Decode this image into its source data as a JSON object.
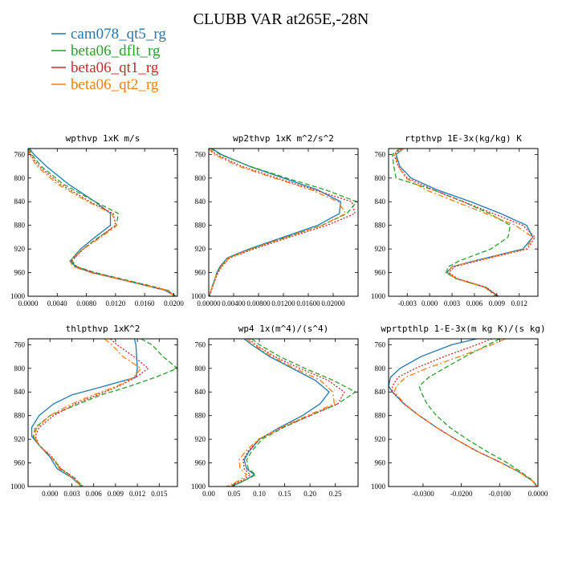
{
  "title": "CLUBB VAR at265E,-28N",
  "legend": [
    {
      "name": "cam078_qt5_rg",
      "color": "#1f77b4",
      "dash": "solid"
    },
    {
      "name": "beta06_dflt_rg",
      "color": "#2ca02c",
      "dash": "dashed"
    },
    {
      "name": "beta06_qt1_rg",
      "color": "#d62728",
      "dash": "dotted"
    },
    {
      "name": "beta06_qt2_rg",
      "color": "#ff7f0e",
      "dash": "dashdot"
    }
  ],
  "chart_data": [
    {
      "type": "line",
      "title": "wpthvp  1xK m/s",
      "ylim": [
        1000,
        750
      ],
      "yticks": [
        760,
        800,
        840,
        880,
        920,
        960,
        1000
      ],
      "ytick_labels": [
        "760",
        "800",
        "840",
        "880",
        "920",
        "960",
        "1000"
      ],
      "xlim": [
        0.0,
        0.0205
      ],
      "xticks": [
        0.0,
        0.004,
        0.008,
        0.012,
        0.016,
        0.02
      ],
      "xtick_labels": [
        "0.0000",
        "0.0040",
        "0.0080",
        "0.0120",
        "0.0160",
        "0.0200"
      ],
      "y": [
        750,
        760,
        780,
        810,
        840,
        860,
        880,
        900,
        920,
        940,
        950,
        960,
        970,
        980,
        990,
        1000
      ],
      "series": [
        {
          "name": "cam078_qt5_rg",
          "values": [
            0.0002,
            0.0008,
            0.0025,
            0.0055,
            0.0092,
            0.0113,
            0.0113,
            0.0092,
            0.0072,
            0.0058,
            0.0065,
            0.0088,
            0.0122,
            0.0155,
            0.0188,
            0.0202
          ]
        },
        {
          "name": "beta06_dflt_rg",
          "values": [
            0.0001,
            0.0005,
            0.0018,
            0.0048,
            0.0092,
            0.0124,
            0.0121,
            0.0097,
            0.0075,
            0.006,
            0.0067,
            0.0092,
            0.0126,
            0.016,
            0.0192,
            0.0203
          ]
        },
        {
          "name": "beta06_qt1_rg",
          "values": [
            0.0,
            0.0003,
            0.0015,
            0.0044,
            0.0085,
            0.0117,
            0.012,
            0.0098,
            0.0076,
            0.006,
            0.0066,
            0.009,
            0.0124,
            0.0158,
            0.0191,
            0.0202
          ]
        },
        {
          "name": "beta06_qt2_rg",
          "values": [
            0.0,
            0.0002,
            0.0012,
            0.004,
            0.0082,
            0.0115,
            0.0122,
            0.01,
            0.0076,
            0.0057,
            0.0062,
            0.0086,
            0.0121,
            0.0156,
            0.019,
            0.0201
          ]
        }
      ]
    },
    {
      "type": "line",
      "title": "wp2thvp  1xK m^2/s^2",
      "ylim": [
        1000,
        750
      ],
      "yticks": [
        760,
        800,
        840,
        880,
        920,
        960,
        1000
      ],
      "ytick_labels": [
        "760",
        "800",
        "840",
        "880",
        "920",
        "960",
        "1000"
      ],
      "xlim": [
        0.0,
        0.024
      ],
      "xticks": [
        0.0,
        0.004,
        0.008,
        0.012,
        0.016,
        0.02
      ],
      "xtick_labels": [
        "0.00000",
        "0.00400",
        "0.00800",
        "0.01200",
        "0.01600",
        "0.02000"
      ],
      "y": [
        750,
        760,
        780,
        800,
        820,
        840,
        860,
        880,
        900,
        920,
        935,
        950,
        960,
        970,
        985,
        1000
      ],
      "series": [
        {
          "name": "cam078_qt5_rg",
          "values": [
            0.0005,
            0.002,
            0.0065,
            0.012,
            0.0175,
            0.0212,
            0.021,
            0.0175,
            0.012,
            0.0065,
            0.003,
            0.0018,
            0.0013,
            0.001,
            0.0005,
            0.0001
          ]
        },
        {
          "name": "beta06_dflt_rg",
          "values": [
            0.0003,
            0.0018,
            0.0066,
            0.0125,
            0.0188,
            0.0238,
            0.0222,
            0.0182,
            0.0125,
            0.0068,
            0.0031,
            0.0019,
            0.0014,
            0.001,
            0.0005,
            0.0001
          ]
        },
        {
          "name": "beta06_qt1_rg",
          "values": [
            0.0,
            0.0012,
            0.0053,
            0.011,
            0.017,
            0.023,
            0.0235,
            0.019,
            0.013,
            0.0072,
            0.0034,
            0.0021,
            0.0015,
            0.0011,
            0.0006,
            0.0001
          ]
        },
        {
          "name": "beta06_qt2_rg",
          "values": [
            0.0,
            0.0008,
            0.0048,
            0.0105,
            0.0165,
            0.0208,
            0.022,
            0.0182,
            0.0125,
            0.0068,
            0.0032,
            0.002,
            0.0014,
            0.001,
            0.0005,
            0.0001
          ]
        }
      ]
    },
    {
      "type": "line",
      "title": "rtpthvp  1E-3x(kg/kg) K",
      "ylim": [
        1000,
        750
      ],
      "yticks": [
        760,
        800,
        840,
        880,
        920,
        960,
        1000
      ],
      "ytick_labels": [
        "760",
        "800",
        "840",
        "880",
        "920",
        "960",
        "1000"
      ],
      "xlim": [
        -0.0055,
        0.0145
      ],
      "xticks": [
        -0.003,
        0.0,
        0.003,
        0.006,
        0.009,
        0.012
      ],
      "xtick_labels": [
        "-0.003",
        "0.000",
        "0.003",
        "0.006",
        "0.009",
        "0.012"
      ],
      "y": [
        750,
        760,
        780,
        800,
        820,
        840,
        860,
        880,
        900,
        920,
        940,
        950,
        960,
        970,
        985,
        1000
      ],
      "series": [
        {
          "name": "cam078_qt5_rg",
          "values": [
            -0.0035,
            -0.0045,
            -0.004,
            -0.0025,
            0.001,
            0.0055,
            0.0095,
            0.013,
            0.0138,
            0.0125,
            0.006,
            0.003,
            0.0023,
            0.0035,
            0.0075,
            0.0092
          ]
        },
        {
          "name": "beta06_dflt_rg",
          "values": [
            -0.004,
            -0.005,
            -0.0048,
            -0.0045,
            0.0005,
            0.0045,
            0.008,
            0.0108,
            0.0105,
            0.0082,
            0.004,
            0.0025,
            0.0022,
            0.0035,
            0.0075,
            0.009
          ]
        },
        {
          "name": "beta06_qt1_rg",
          "values": [
            -0.0038,
            -0.0048,
            -0.0042,
            -0.003,
            0.0005,
            0.0045,
            0.0085,
            0.0125,
            0.0141,
            0.0131,
            0.0065,
            0.0033,
            0.0026,
            0.0037,
            0.0076,
            0.0092
          ]
        },
        {
          "name": "beta06_qt2_rg",
          "values": [
            -0.0036,
            -0.0046,
            -0.0042,
            -0.0032,
            -0.0005,
            0.0035,
            0.0075,
            0.0115,
            0.0138,
            0.0129,
            0.0062,
            0.003,
            0.0024,
            0.0035,
            0.0074,
            0.0088
          ]
        }
      ]
    },
    {
      "type": "line",
      "title": "thlpthvp  1xK^2",
      "ylim": [
        1000,
        750
      ],
      "yticks": [
        760,
        800,
        840,
        880,
        920,
        960,
        1000
      ],
      "ytick_labels": [
        "760",
        "800",
        "840",
        "880",
        "920",
        "960",
        "1000"
      ],
      "xlim": [
        -0.003,
        0.0175
      ],
      "xticks": [
        0.0,
        0.003,
        0.006,
        0.009,
        0.012,
        0.015
      ],
      "xtick_labels": [
        "0.000",
        "0.003",
        "0.006",
        "0.009",
        "0.012",
        "0.015"
      ],
      "y": [
        750,
        760,
        780,
        800,
        815,
        830,
        845,
        860,
        880,
        900,
        915,
        930,
        950,
        970,
        985,
        1000
      ],
      "series": [
        {
          "name": "cam078_qt5_rg",
          "values": [
            0.0116,
            0.0118,
            0.0119,
            0.012,
            0.0118,
            0.0075,
            0.003,
            0.0005,
            -0.0015,
            -0.0025,
            -0.0025,
            -0.0015,
            0.0,
            0.001,
            0.003,
            0.0043
          ]
        },
        {
          "name": "beta06_dflt_rg",
          "values": [
            0.0125,
            0.014,
            0.0155,
            0.0175,
            0.0145,
            0.011,
            0.007,
            0.004,
            0.0,
            -0.002,
            -0.0023,
            -0.0015,
            0.0002,
            0.0015,
            0.0033,
            0.0045
          ]
        },
        {
          "name": "beta06_qt1_rg",
          "values": [
            0.0083,
            0.0092,
            0.0115,
            0.0135,
            0.0118,
            0.0095,
            0.0065,
            0.0035,
            0.0005,
            -0.0015,
            -0.002,
            -0.0015,
            0.0003,
            0.0015,
            0.0033,
            0.0045
          ]
        },
        {
          "name": "beta06_qt2_rg",
          "values": [
            0.0075,
            0.0085,
            0.01,
            0.0125,
            0.0115,
            0.0092,
            0.006,
            0.003,
            0.0,
            -0.0018,
            -0.0022,
            -0.0015,
            0.0002,
            0.0013,
            0.0031,
            0.0043
          ]
        }
      ]
    },
    {
      "type": "line",
      "title": "wp4  1x(m^4)/(s^4)",
      "ylim": [
        1000,
        750
      ],
      "yticks": [
        760,
        800,
        840,
        880,
        920,
        960,
        1000
      ],
      "ytick_labels": [
        "760",
        "800",
        "840",
        "880",
        "920",
        "960",
        "1000"
      ],
      "xlim": [
        0.0,
        0.295
      ],
      "xticks": [
        0.0,
        0.05,
        0.1,
        0.15,
        0.2,
        0.25
      ],
      "xtick_labels": [
        "0.00",
        "0.05",
        "0.10",
        "0.15",
        "0.20",
        "0.25"
      ],
      "y": [
        750,
        760,
        780,
        800,
        820,
        840,
        860,
        880,
        900,
        920,
        940,
        955,
        970,
        980,
        990,
        1000
      ],
      "series": [
        {
          "name": "cam078_qt5_rg",
          "values": [
            0.07,
            0.085,
            0.12,
            0.165,
            0.21,
            0.238,
            0.22,
            0.185,
            0.14,
            0.1,
            0.08,
            0.07,
            0.075,
            0.09,
            0.07,
            0.045
          ]
        },
        {
          "name": "beta06_dflt_rg",
          "values": [
            0.085,
            0.1,
            0.14,
            0.19,
            0.245,
            0.29,
            0.255,
            0.2,
            0.148,
            0.105,
            0.085,
            0.075,
            0.078,
            0.093,
            0.07,
            0.045
          ]
        },
        {
          "name": "beta06_qt1_rg",
          "values": [
            0.08,
            0.092,
            0.13,
            0.18,
            0.235,
            0.268,
            0.255,
            0.2,
            0.145,
            0.1,
            0.078,
            0.068,
            0.07,
            0.082,
            0.065,
            0.04
          ]
        },
        {
          "name": "beta06_qt2_rg",
          "values": [
            0.075,
            0.088,
            0.125,
            0.17,
            0.22,
            0.245,
            0.248,
            0.195,
            0.143,
            0.098,
            0.073,
            0.06,
            0.062,
            0.075,
            0.06,
            0.035
          ]
        }
      ]
    },
    {
      "type": "line",
      "title": "wprtpthlp  1-E-3x(m kg K)/(s kg)",
      "ylim": [
        1000,
        750
      ],
      "yticks": [
        760,
        800,
        840,
        880,
        920,
        960,
        1000
      ],
      "ytick_labels": [
        "760",
        "800",
        "840",
        "880",
        "920",
        "960",
        "1000"
      ],
      "xlim": [
        -0.039,
        0.0
      ],
      "xticks": [
        -0.03,
        -0.02,
        -0.01,
        0.0
      ],
      "xtick_labels": [
        "-0.0300",
        "-0.0200",
        "-0.0100",
        "0.0000"
      ],
      "y": [
        750,
        760,
        780,
        800,
        815,
        830,
        840,
        860,
        880,
        900,
        920,
        940,
        960,
        975,
        990,
        1000
      ],
      "series": [
        {
          "name": "cam078_qt5_rg",
          "values": [
            -0.016,
            -0.0225,
            -0.0305,
            -0.036,
            -0.0385,
            -0.039,
            -0.038,
            -0.035,
            -0.031,
            -0.0265,
            -0.0215,
            -0.016,
            -0.0095,
            -0.005,
            -0.0015,
            -0.0002
          ]
        },
        {
          "name": "beta06_dflt_rg",
          "values": [
            -0.01,
            -0.013,
            -0.019,
            -0.0245,
            -0.0285,
            -0.031,
            -0.0305,
            -0.029,
            -0.0265,
            -0.023,
            -0.0185,
            -0.0135,
            -0.008,
            -0.0045,
            -0.0013,
            -0.0002
          ]
        },
        {
          "name": "beta06_qt1_rg",
          "values": [
            -0.012,
            -0.016,
            -0.0245,
            -0.032,
            -0.0365,
            -0.038,
            -0.038,
            -0.035,
            -0.031,
            -0.0265,
            -0.0215,
            -0.016,
            -0.0095,
            -0.005,
            -0.0015,
            -0.0002
          ]
        },
        {
          "name": "beta06_qt2_rg",
          "values": [
            -0.0085,
            -0.012,
            -0.0205,
            -0.029,
            -0.0345,
            -0.037,
            -0.0375,
            -0.0348,
            -0.031,
            -0.0265,
            -0.0215,
            -0.016,
            -0.0095,
            -0.005,
            -0.0015,
            -0.0002
          ]
        }
      ]
    }
  ]
}
